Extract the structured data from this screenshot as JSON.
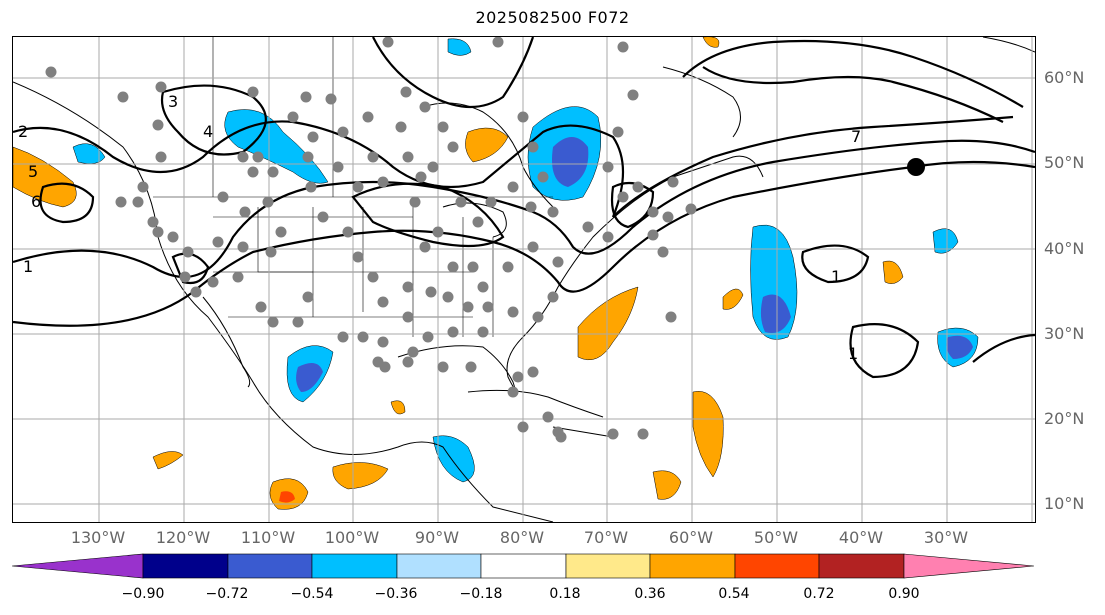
{
  "title": "2025082500 F072",
  "lat_labels": [
    "60°N",
    "50°N",
    "40°N",
    "30°N",
    "20°N",
    "10°N"
  ],
  "lon_labels": [
    "130°W",
    "120°W",
    "110°W",
    "100°W",
    "90°W",
    "80°W",
    "70°W",
    "60°W",
    "50°W",
    "40°W",
    "30°W"
  ],
  "colorbar": {
    "ticks": [
      "−0.90",
      "−0.72",
      "−0.54",
      "−0.36",
      "−0.18",
      "0.18",
      "0.36",
      "0.54",
      "0.72",
      "0.90"
    ],
    "colors": [
      "#9932cc",
      "#00008b",
      "#3a5bd0",
      "#00bfff",
      "#b0e0ff",
      "#ffffff",
      "#ffe98a",
      "#ffa500",
      "#ff4500",
      "#b22222",
      "#ff80b0"
    ]
  },
  "contour_labels": [
    "1",
    "2",
    "3",
    "4",
    "5",
    "6",
    "7",
    "1",
    "1"
  ],
  "map_colors": {
    "grid": "#aaaaaa",
    "station": "#808080",
    "marker": "#000000"
  }
}
